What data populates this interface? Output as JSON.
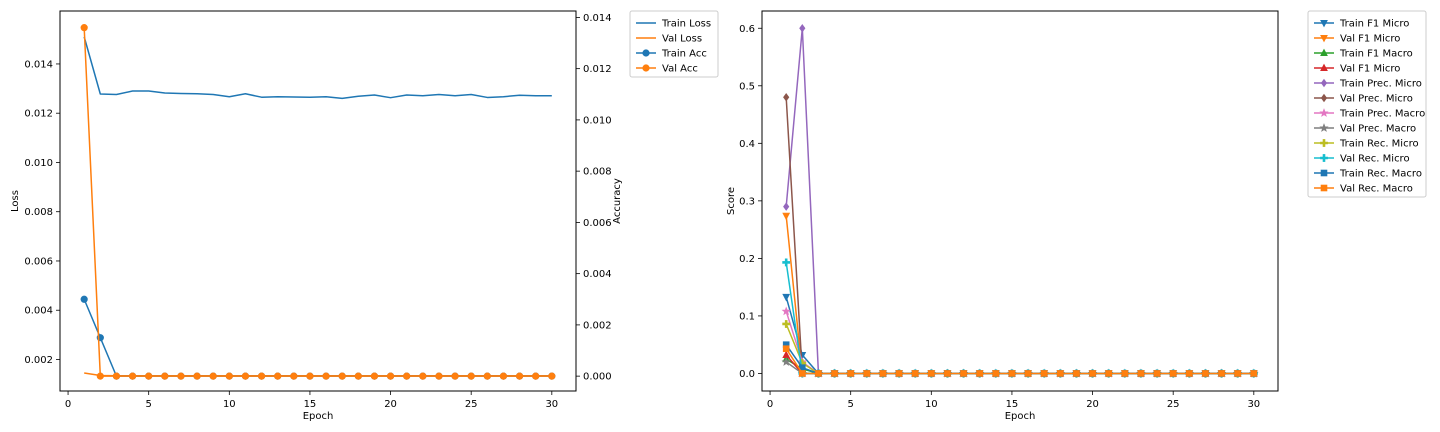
{
  "chart_data": [
    {
      "type": "line",
      "xlabel": "Epoch",
      "ylabel": "Loss",
      "y2label": "Accuracy",
      "xlim": [
        -0.5,
        31.5
      ],
      "ylim": [
        0.00072,
        0.01615
      ],
      "y2lim": [
        -0.00058,
        0.01425
      ],
      "x_ticks": [
        0,
        5,
        10,
        15,
        20,
        25,
        30
      ],
      "y_ticks": [
        0.002,
        0.004,
        0.006,
        0.008,
        0.01,
        0.012,
        0.014
      ],
      "y_tick_labels": [
        "0.002",
        "0.004",
        "0.006",
        "0.008",
        "0.010",
        "0.012",
        "0.014"
      ],
      "y2_ticks": [
        0.0,
        0.002,
        0.004,
        0.006,
        0.008,
        0.01,
        0.012,
        0.014
      ],
      "y2_tick_labels": [
        "0.000",
        "0.002",
        "0.004",
        "0.006",
        "0.008",
        "0.010",
        "0.012",
        "0.014"
      ],
      "grid": false,
      "legend_placement": "outside-top-right",
      "x": [
        1,
        2,
        3,
        4,
        5,
        6,
        7,
        8,
        9,
        10,
        11,
        12,
        13,
        14,
        15,
        16,
        17,
        18,
        19,
        20,
        21,
        22,
        23,
        24,
        25,
        26,
        27,
        28,
        29,
        30
      ],
      "series": [
        {
          "name": "Train Loss",
          "axis": "left",
          "color": "#1f77b4",
          "marker": "none",
          "values": [
            0.0151,
            0.01278,
            0.01276,
            0.0129,
            0.0129,
            0.01282,
            0.0128,
            0.01279,
            0.01276,
            0.01267,
            0.01279,
            0.01265,
            0.01267,
            0.01266,
            0.01265,
            0.01267,
            0.0126,
            0.01269,
            0.01274,
            0.01263,
            0.01274,
            0.01271,
            0.01276,
            0.01271,
            0.01276,
            0.01264,
            0.01267,
            0.01273,
            0.01271,
            0.01271
          ]
        },
        {
          "name": "Val Loss",
          "axis": "left",
          "color": "#ff7f0e",
          "marker": "none",
          "values": [
            0.00145,
            0.00135,
            0.00134,
            0.00134,
            0.00134,
            0.00134,
            0.00134,
            0.00134,
            0.00134,
            0.00134,
            0.00134,
            0.00134,
            0.00134,
            0.00134,
            0.00134,
            0.00134,
            0.00134,
            0.00134,
            0.00134,
            0.00134,
            0.00134,
            0.00134,
            0.00134,
            0.00134,
            0.00134,
            0.00134,
            0.00134,
            0.00134,
            0.00134,
            0.00134
          ]
        },
        {
          "name": "Train Acc",
          "axis": "right",
          "color": "#1f77b4",
          "marker": "circle",
          "values": [
            0.003,
            0.0015,
            0,
            0,
            0,
            0,
            0,
            0,
            0,
            0,
            0,
            0,
            0,
            0,
            0,
            0,
            0,
            0,
            0,
            0,
            0,
            0,
            0,
            0,
            0,
            0,
            0,
            0,
            0,
            0
          ]
        },
        {
          "name": "Val Acc",
          "axis": "right",
          "color": "#ff7f0e",
          "marker": "circle",
          "values": [
            0.0136,
            0,
            0,
            0,
            0,
            0,
            0,
            0,
            0,
            0,
            0,
            0,
            0,
            0,
            0,
            0,
            0,
            0,
            0,
            0,
            0,
            0,
            0,
            0,
            0,
            0,
            0,
            0,
            0,
            0
          ]
        }
      ]
    },
    {
      "type": "line",
      "xlabel": "Epoch",
      "ylabel": "Score",
      "xlim": [
        -0.5,
        31.5
      ],
      "ylim": [
        -0.0305,
        0.63
      ],
      "x_ticks": [
        0,
        5,
        10,
        15,
        20,
        25,
        30
      ],
      "y_ticks": [
        0.0,
        0.1,
        0.2,
        0.3,
        0.4,
        0.5,
        0.6
      ],
      "y_tick_labels": [
        "0.0",
        "0.1",
        "0.2",
        "0.3",
        "0.4",
        "0.5",
        "0.6"
      ],
      "grid": false,
      "legend_placement": "outside-top-right",
      "x": [
        1,
        2,
        3,
        4,
        5,
        6,
        7,
        8,
        9,
        10,
        11,
        12,
        13,
        14,
        15,
        16,
        17,
        18,
        19,
        20,
        21,
        22,
        23,
        24,
        25,
        26,
        27,
        28,
        29,
        30
      ],
      "series": [
        {
          "name": "Train F1 Micro",
          "color": "#1f77b4",
          "marker": "triangle-down",
          "values": [
            0.133,
            0.032,
            0,
            0,
            0,
            0,
            0,
            0,
            0,
            0,
            0,
            0,
            0,
            0,
            0,
            0,
            0,
            0,
            0,
            0,
            0,
            0,
            0,
            0,
            0,
            0,
            0,
            0,
            0,
            0
          ]
        },
        {
          "name": "Val F1 Micro",
          "color": "#ff7f0e",
          "marker": "triangle-down",
          "values": [
            0.274,
            0,
            0,
            0,
            0,
            0,
            0,
            0,
            0,
            0,
            0,
            0,
            0,
            0,
            0,
            0,
            0,
            0,
            0,
            0,
            0,
            0,
            0,
            0,
            0,
            0,
            0,
            0,
            0,
            0
          ]
        },
        {
          "name": "Train F1 Macro",
          "color": "#2ca02c",
          "marker": "triangle-up",
          "values": [
            0.025,
            0.008,
            0,
            0,
            0,
            0,
            0,
            0,
            0,
            0,
            0,
            0,
            0,
            0,
            0,
            0,
            0,
            0,
            0,
            0,
            0,
            0,
            0,
            0,
            0,
            0,
            0,
            0,
            0,
            0
          ]
        },
        {
          "name": "Val F1 Micro",
          "color": "#d62728",
          "marker": "triangle-up",
          "values": [
            0.032,
            0,
            0,
            0,
            0,
            0,
            0,
            0,
            0,
            0,
            0,
            0,
            0,
            0,
            0,
            0,
            0,
            0,
            0,
            0,
            0,
            0,
            0,
            0,
            0,
            0,
            0,
            0,
            0,
            0
          ]
        },
        {
          "name": "Train Prec. Micro",
          "color": "#9467bd",
          "marker": "diamond",
          "values": [
            0.29,
            0.6,
            0,
            0,
            0,
            0,
            0,
            0,
            0,
            0,
            0,
            0,
            0,
            0,
            0,
            0,
            0,
            0,
            0,
            0,
            0,
            0,
            0,
            0,
            0,
            0,
            0,
            0,
            0,
            0
          ]
        },
        {
          "name": "Val Prec. Micro",
          "color": "#8c564b",
          "marker": "diamond",
          "values": [
            0.48,
            0,
            0,
            0,
            0,
            0,
            0,
            0,
            0,
            0,
            0,
            0,
            0,
            0,
            0,
            0,
            0,
            0,
            0,
            0,
            0,
            0,
            0,
            0,
            0,
            0,
            0,
            0,
            0,
            0
          ]
        },
        {
          "name": "Train Prec. Macro",
          "color": "#e377c2",
          "marker": "star",
          "values": [
            0.108,
            0.02,
            0,
            0,
            0,
            0,
            0,
            0,
            0,
            0,
            0,
            0,
            0,
            0,
            0,
            0,
            0,
            0,
            0,
            0,
            0,
            0,
            0,
            0,
            0,
            0,
            0,
            0,
            0,
            0
          ]
        },
        {
          "name": "Val Prec. Macro",
          "color": "#7f7f7f",
          "marker": "star",
          "values": [
            0.02,
            0,
            0,
            0,
            0,
            0,
            0,
            0,
            0,
            0,
            0,
            0,
            0,
            0,
            0,
            0,
            0,
            0,
            0,
            0,
            0,
            0,
            0,
            0,
            0,
            0,
            0,
            0,
            0,
            0
          ]
        },
        {
          "name": "Train Rec. Micro",
          "color": "#bcbd22",
          "marker": "plus",
          "values": [
            0.086,
            0.018,
            0,
            0,
            0,
            0,
            0,
            0,
            0,
            0,
            0,
            0,
            0,
            0,
            0,
            0,
            0,
            0,
            0,
            0,
            0,
            0,
            0,
            0,
            0,
            0,
            0,
            0,
            0,
            0
          ]
        },
        {
          "name": "Val Rec. Micro",
          "color": "#17becf",
          "marker": "plus",
          "values": [
            0.193,
            0,
            0,
            0,
            0,
            0,
            0,
            0,
            0,
            0,
            0,
            0,
            0,
            0,
            0,
            0,
            0,
            0,
            0,
            0,
            0,
            0,
            0,
            0,
            0,
            0,
            0,
            0,
            0,
            0
          ]
        },
        {
          "name": "Train Rec. Macro",
          "color": "#1f77b4",
          "marker": "square",
          "values": [
            0.05,
            0.01,
            0,
            0,
            0,
            0,
            0,
            0,
            0,
            0,
            0,
            0,
            0,
            0,
            0,
            0,
            0,
            0,
            0,
            0,
            0,
            0,
            0,
            0,
            0,
            0,
            0,
            0,
            0,
            0
          ]
        },
        {
          "name": "Val Rec. Macro",
          "color": "#ff7f0e",
          "marker": "square",
          "values": [
            0.043,
            0,
            0,
            0,
            0,
            0,
            0,
            0,
            0,
            0,
            0,
            0,
            0,
            0,
            0,
            0,
            0,
            0,
            0,
            0,
            0,
            0,
            0,
            0,
            0,
            0,
            0,
            0,
            0,
            0
          ]
        }
      ]
    }
  ]
}
